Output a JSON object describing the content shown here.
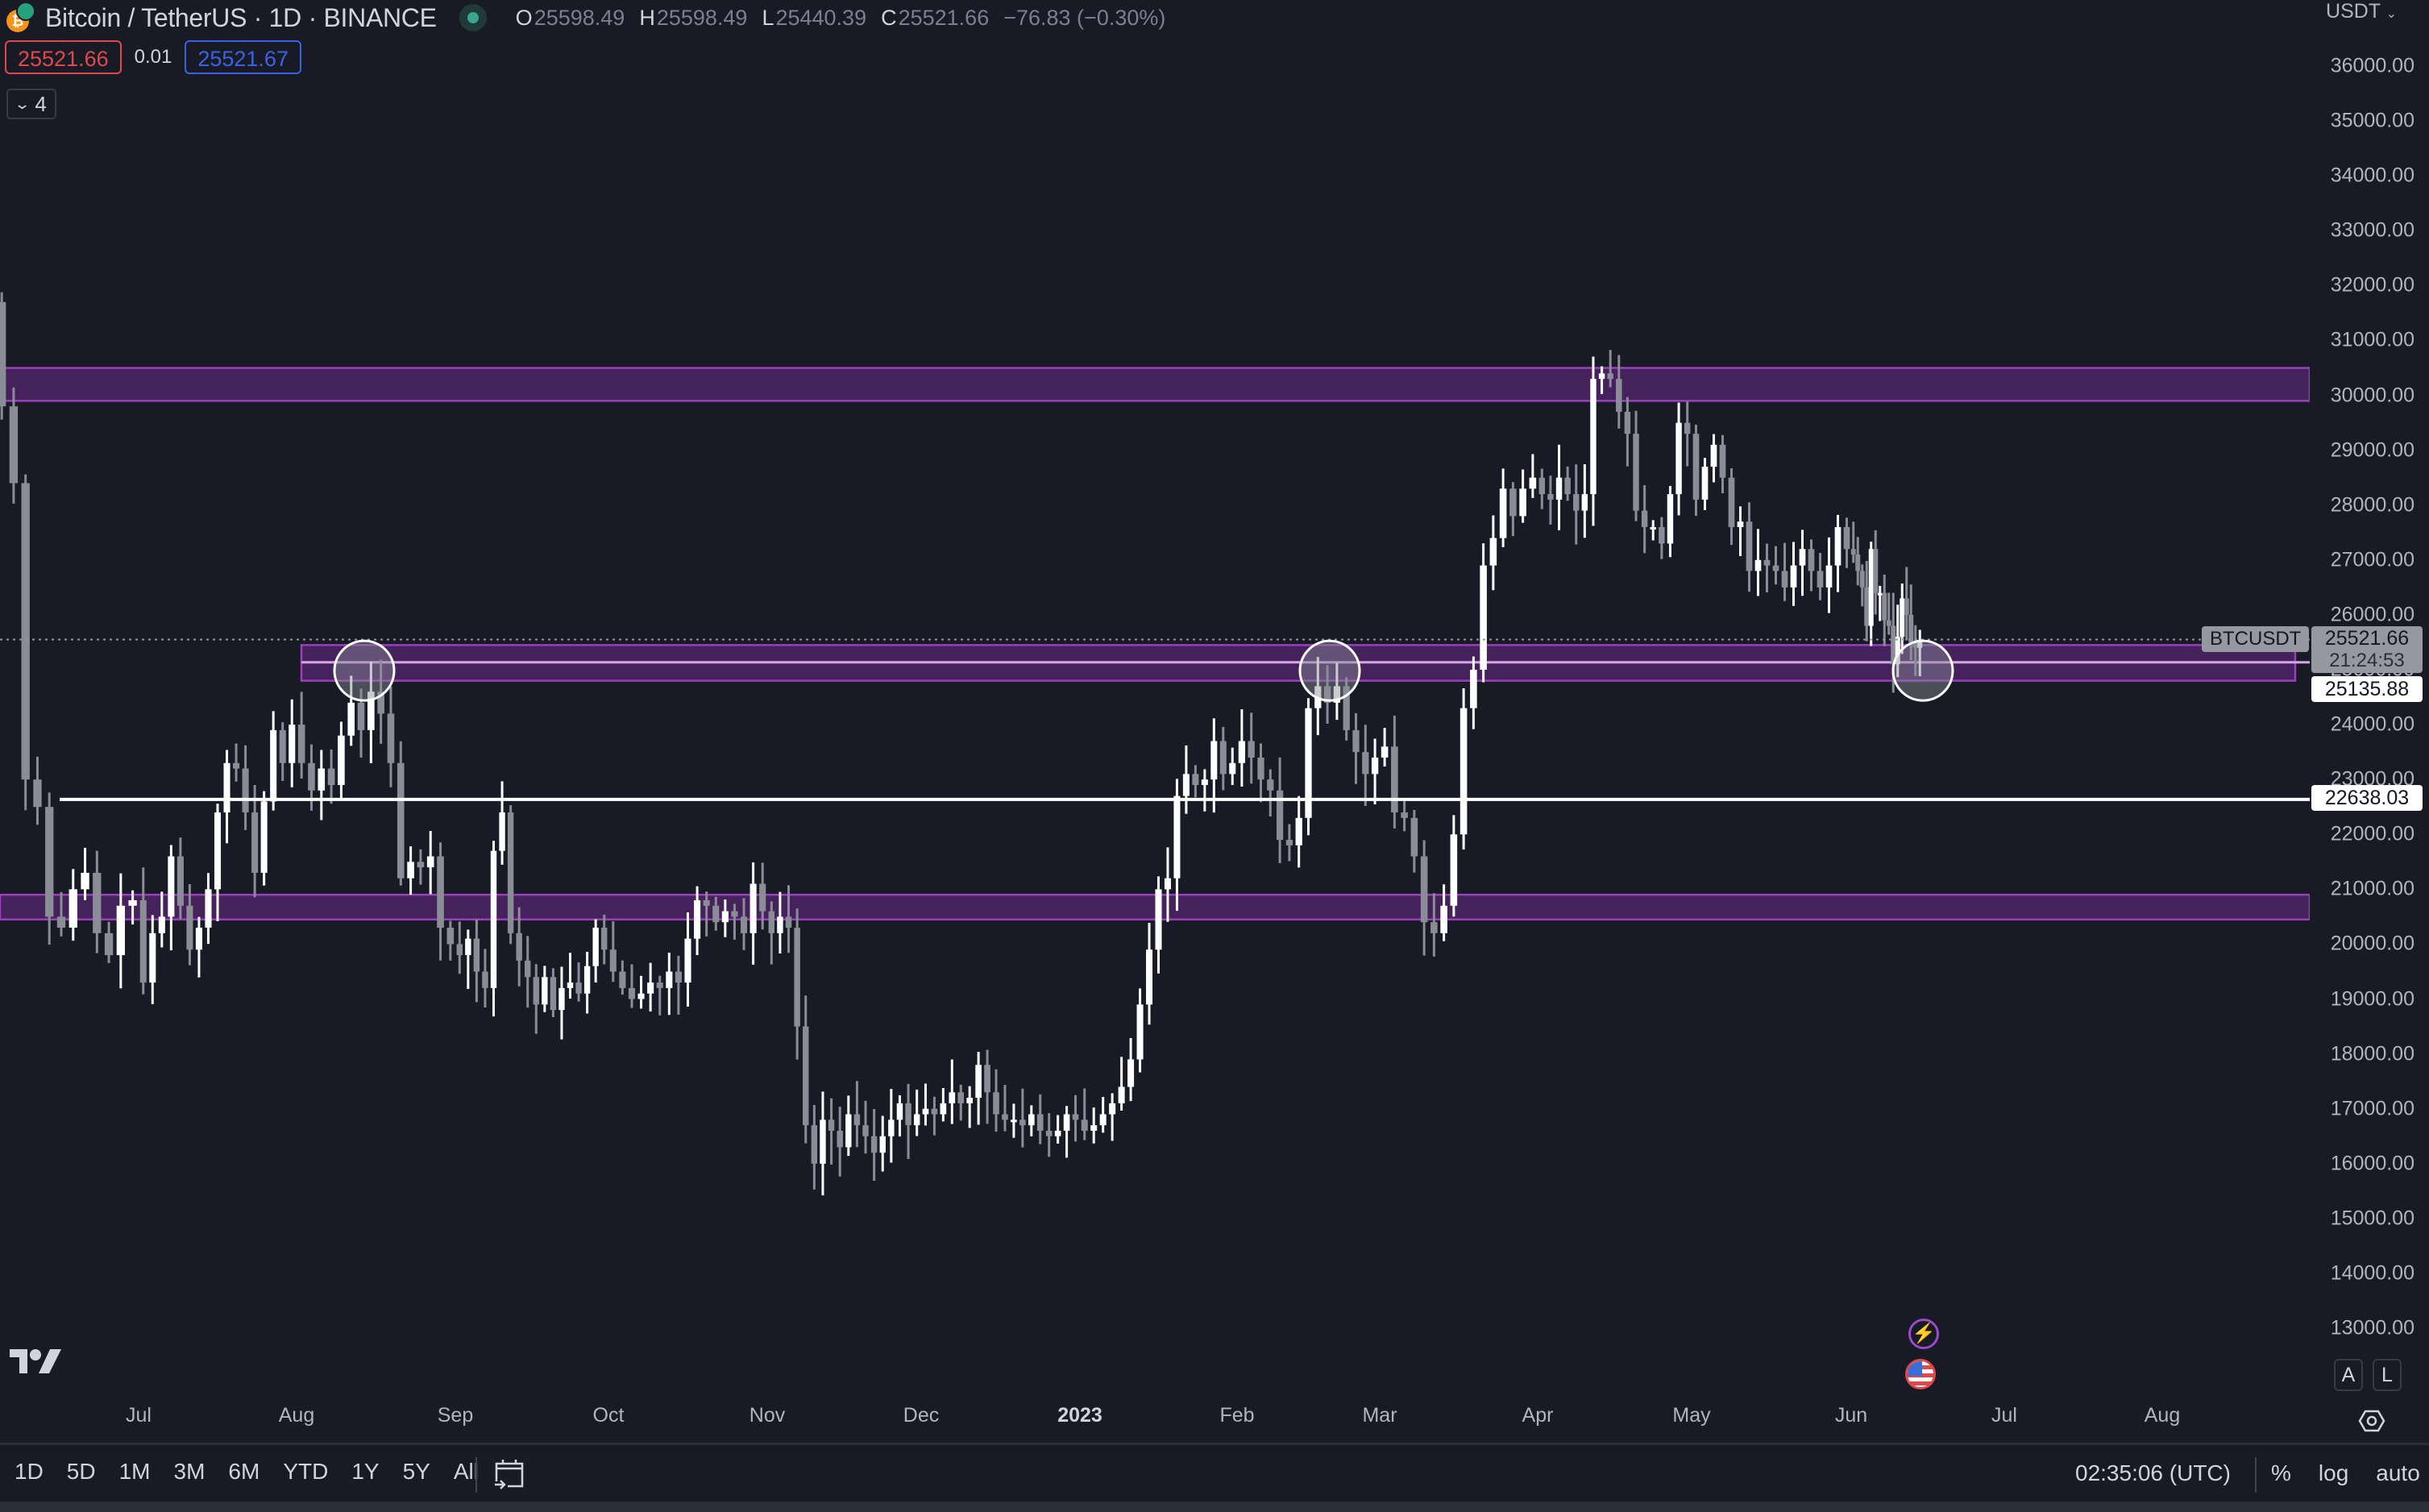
{
  "header": {
    "symbol_title": "Bitcoin / TetherUS · 1D · BINANCE",
    "ohlc": {
      "o_label": "O",
      "o_value": "25598.49",
      "h_label": "H",
      "h_value": "25598.49",
      "l_label": "L",
      "l_value": "25440.39",
      "c_label": "C",
      "c_value": "25521.66",
      "change": "−76.83 (−0.30%)"
    },
    "sell_price": "25521.66",
    "spread": "0.01",
    "buy_price": "25521.67",
    "indicators_toggle_count": "4"
  },
  "price_axis": {
    "currency": "USDT",
    "ticks": [
      "36000.00",
      "35000.00",
      "34000.00",
      "33000.00",
      "32000.00",
      "31000.00",
      "30000.00",
      "29000.00",
      "28000.00",
      "27000.00",
      "26000.00",
      "25000.00",
      "24000.00",
      "23000.00",
      "22000.00",
      "21000.00",
      "20000.00",
      "19000.00",
      "18000.00",
      "17000.00",
      "16000.00",
      "15000.00",
      "14000.00",
      "13000.00"
    ],
    "symbol_tag": "BTCUSDT",
    "last_price": "25521.66",
    "countdown": "21:24:53",
    "line_label_1": "25135.88",
    "line_label_2": "22638.03",
    "auto_button": "A",
    "log_button": "L"
  },
  "time_axis": {
    "ticks": [
      {
        "label": "Jul",
        "x": 172
      },
      {
        "label": "Aug",
        "x": 368
      },
      {
        "label": "Sep",
        "x": 565
      },
      {
        "label": "Oct",
        "x": 755
      },
      {
        "label": "Nov",
        "x": 952
      },
      {
        "label": "Dec",
        "x": 1143
      },
      {
        "label": "2023",
        "x": 1340,
        "year": true
      },
      {
        "label": "Feb",
        "x": 1535
      },
      {
        "label": "Mar",
        "x": 1712
      },
      {
        "label": "Apr",
        "x": 1908
      },
      {
        "label": "May",
        "x": 2099
      },
      {
        "label": "Jun",
        "x": 2297
      },
      {
        "label": "Jul",
        "x": 2487
      },
      {
        "label": "Aug",
        "x": 2683
      }
    ]
  },
  "bottom_bar": {
    "ranges": [
      "1D",
      "5D",
      "1M",
      "3M",
      "6M",
      "YTD",
      "1Y",
      "5Y",
      "All"
    ],
    "clock": "02:35:06 (UTC)",
    "percent": "%",
    "log": "log",
    "auto": "auto"
  },
  "colors": {
    "background": "#181b26",
    "up_candle": "#ffffff",
    "down_candle": "#8a8d96",
    "zone_fill": "#4a2360",
    "zone_border": "#9c3fbf",
    "mid_line": "#d7a6e6",
    "horizontal_line": "#ffffff",
    "sell": "#e0484c",
    "buy": "#3a63e3"
  },
  "chart_data": {
    "type": "candlestick",
    "title": "Bitcoin / TetherUS · 1D · BINANCE",
    "xlabel": "",
    "ylabel": "USDT",
    "ylim": [
      13000,
      36000
    ],
    "x_range": [
      "2022-06",
      "2023-08"
    ],
    "last_close": 25521.66,
    "approx_daily_closes": {
      "2022-06": [
        31700,
        29800,
        28400,
        23000,
        22500,
        20500,
        20300,
        21000,
        21300,
        20200,
        19800,
        20700,
        20800
      ],
      "2022-07": [
        19300,
        20200,
        20500,
        21600,
        20700,
        19900,
        20300,
        21000,
        22400,
        23300,
        23200,
        22400,
        21300,
        22600,
        23900,
        23300,
        24000
      ],
      "2022-08": [
        23300,
        22800,
        23200,
        22900,
        23800,
        24400,
        23900,
        24600,
        24200,
        23300,
        21200,
        21500,
        21400,
        21600,
        20300,
        20000
      ],
      "2022-09": [
        19800,
        20100,
        19500,
        19200,
        21700,
        22400,
        20200,
        19700,
        19400,
        18900,
        19400,
        18800,
        19200,
        19300,
        19100,
        19600,
        20300,
        19900
      ],
      "2022-10": [
        19500,
        19200,
        19000,
        19100,
        19300,
        19200,
        19500,
        19300,
        20100,
        20800,
        20700,
        20400,
        20600,
        20500,
        20200,
        21100,
        20600
      ],
      "2022-11": [
        20200,
        20500,
        20300,
        18500,
        16700,
        16000,
        16800,
        16600,
        16300,
        16900,
        16700,
        16500,
        16200,
        16500,
        16800,
        17100,
        16700,
        16900
      ],
      "2022-12": [
        17000,
        16900,
        17100,
        17300,
        17100,
        17200,
        17800,
        17300,
        16900,
        16800,
        16800,
        16700,
        16900,
        16600,
        16500,
        16600,
        16900,
        16800
      ],
      "2023-01": [
        16600,
        16700,
        16900,
        17100,
        17400,
        17900,
        18900,
        19900,
        21000,
        21200,
        22700,
        23100,
        22900,
        23000,
        23700,
        23100,
        23300
      ],
      "2023-02": [
        23700,
        23400,
        23000,
        22800,
        21900,
        21800,
        22300,
        24300,
        24700,
        24400,
        24700,
        23900,
        23500,
        23100,
        23400
      ],
      "2023-03": [
        23600,
        22400,
        22300,
        21600,
        20400,
        20200,
        20700,
        22000,
        24300,
        25000,
        26900,
        27400,
        28300,
        27800,
        28300,
        28500
      ],
      "2023-04": [
        28200,
        28100,
        28500,
        28200,
        27900,
        28200,
        30300,
        30400,
        30300,
        29700,
        29300,
        27900,
        27600,
        27600,
        27300,
        28200,
        29500,
        29300
      ],
      "2023-05": [
        28100,
        28700,
        29100,
        28500,
        27600,
        27700,
        26800,
        27000,
        26900,
        26800,
        26500,
        26900,
        27200,
        26800,
        26500,
        26900,
        27600,
        27200
      ],
      "2023-06": [
        27100,
        26800,
        26500,
        25800,
        27200,
        26400,
        26400,
        25900,
        25800,
        25100,
        25600,
        26300,
        26000,
        25500,
        25400,
        25521.66
      ]
    },
    "annotations": {
      "zones": [
        {
          "name": "upper resistance zone",
          "low": 29900,
          "high": 30500
        },
        {
          "name": "middle support/resistance zone",
          "low": 24800,
          "high": 25450,
          "mid_line": 25135.88
        },
        {
          "name": "lower support zone",
          "low": 20450,
          "high": 20900
        }
      ],
      "horizontal_lines": [
        {
          "name": "white line",
          "value": 22638.03
        }
      ],
      "circles": [
        {
          "near": "Aug 2022",
          "price": 25100
        },
        {
          "near": "Feb 2023",
          "price": 25100
        },
        {
          "near": "Jun 2023",
          "price": 25100
        }
      ],
      "last_price_dotted_line": 25521.66
    }
  }
}
